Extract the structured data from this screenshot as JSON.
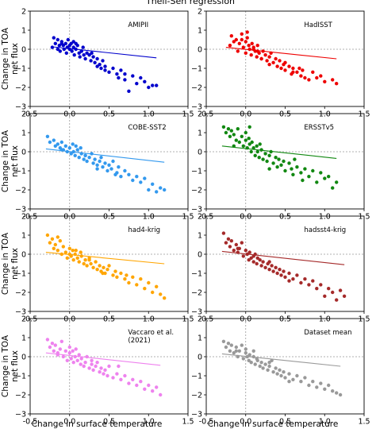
{
  "figure": {
    "title": "Theil-Sen regression",
    "xlabel": "Change in surface temperature",
    "ylabel_line1": "Change in TOA",
    "ylabel_line2": "net flux"
  },
  "chart_data": [
    {
      "type": "scatter",
      "title": "AMIPII",
      "color": "#0000cc",
      "xlim": [
        -0.5,
        1.5
      ],
      "ylim": [
        -3,
        2
      ],
      "xticks": [
        -0.5,
        0.0,
        0.5,
        1.0,
        1.5
      ],
      "yticks": [
        -3,
        -2,
        -1,
        0,
        1,
        2
      ],
      "fit": {
        "x": [
          -0.2,
          1.1
        ],
        "y": [
          0.12,
          -0.45
        ]
      },
      "x": [
        -0.22,
        -0.2,
        -0.18,
        -0.15,
        -0.13,
        -0.12,
        -0.1,
        -0.08,
        -0.07,
        -0.05,
        -0.04,
        -0.03,
        -0.02,
        0.0,
        0.0,
        0.02,
        0.03,
        0.05,
        0.06,
        0.08,
        0.1,
        0.12,
        0.13,
        0.15,
        0.17,
        0.18,
        0.2,
        0.22,
        0.25,
        0.27,
        0.3,
        0.32,
        0.35,
        0.38,
        0.4,
        0.42,
        0.45,
        0.5,
        0.55,
        0.6,
        0.62,
        0.65,
        0.7,
        0.75,
        0.8,
        0.85,
        0.9,
        0.95,
        1.0,
        1.05,
        1.1,
        -0.1,
        0.05,
        0.15,
        0.28,
        0.45,
        0.7,
        -0.15,
        0.08,
        0.35
      ],
      "y": [
        0.1,
        0.6,
        0.3,
        0.5,
        0.2,
        -0.1,
        0.4,
        0.2,
        0.0,
        0.3,
        -0.2,
        0.1,
        0.5,
        0.0,
        0.2,
        0.3,
        -0.1,
        0.1,
        -0.3,
        0.0,
        0.2,
        -0.2,
        -0.4,
        -0.1,
        0.1,
        -0.3,
        -0.5,
        -0.2,
        -0.3,
        -0.6,
        -0.4,
        -0.7,
        -0.5,
        -0.8,
        -1.0,
        -0.6,
        -1.1,
        -1.2,
        -1.0,
        -1.3,
        -1.5,
        -1.1,
        -1.6,
        -2.2,
        -1.4,
        -1.8,
        -1.5,
        -1.7,
        -2.0,
        -1.9,
        -1.9,
        0.3,
        0.4,
        -0.1,
        -0.2,
        -0.9,
        -1.3,
        0.0,
        0.3,
        -0.9
      ]
    },
    {
      "type": "scatter",
      "title": "HadISST",
      "color": "#ee0000",
      "xlim": [
        -0.5,
        1.5
      ],
      "ylim": [
        -3,
        2
      ],
      "xticks": [
        -0.5,
        0.0,
        0.5,
        1.0,
        1.5
      ],
      "yticks": [
        -3,
        -2,
        -1,
        0,
        1,
        2
      ],
      "fit": {
        "x": [
          -0.25,
          1.15
        ],
        "y": [
          0.1,
          -0.5
        ]
      },
      "x": [
        -0.2,
        -0.18,
        -0.15,
        -0.12,
        -0.1,
        -0.08,
        -0.05,
        -0.03,
        0.0,
        0.0,
        0.02,
        0.04,
        0.05,
        0.07,
        0.08,
        0.1,
        0.12,
        0.14,
        0.15,
        0.17,
        0.2,
        0.22,
        0.25,
        0.27,
        0.3,
        0.32,
        0.35,
        0.38,
        0.4,
        0.43,
        0.45,
        0.48,
        0.5,
        0.55,
        0.58,
        0.6,
        0.65,
        0.7,
        0.72,
        0.75,
        0.8,
        0.85,
        0.9,
        0.95,
        1.0,
        1.1,
        1.15,
        -0.05,
        0.1,
        0.2,
        0.3,
        0.5,
        0.6,
        0.68,
        0.02,
        0.15
      ],
      "y": [
        0.2,
        0.7,
        0.4,
        0.5,
        -0.1,
        0.3,
        0.8,
        0.1,
        0.4,
        -0.2,
        0.6,
        0.2,
        0.0,
        -0.3,
        0.3,
        0.1,
        -0.1,
        -0.4,
        0.2,
        -0.2,
        -0.5,
        -0.1,
        -0.3,
        -0.6,
        -0.4,
        -0.2,
        -0.7,
        -0.5,
        -0.9,
        -0.6,
        -1.0,
        -0.8,
        -1.1,
        -0.9,
        -1.3,
        -1.0,
        -1.2,
        -1.4,
        -1.1,
        -1.5,
        -1.6,
        -1.2,
        -1.5,
        -1.4,
        -1.7,
        -1.6,
        -1.8,
        0.5,
        0.0,
        -0.5,
        -0.8,
        -0.7,
        -1.2,
        -1.0,
        0.9,
        -0.1
      ]
    },
    {
      "type": "scatter",
      "title": "COBE-SST2",
      "color": "#3399ee",
      "xlim": [
        -0.5,
        1.5
      ],
      "ylim": [
        -3,
        2
      ],
      "xticks": [
        -0.5,
        0.0,
        0.5,
        1.0,
        1.5
      ],
      "yticks": [
        -3,
        -2,
        -1,
        0,
        1,
        2
      ],
      "fit": {
        "x": [
          -0.3,
          1.2
        ],
        "y": [
          0.15,
          -0.55
        ]
      },
      "x": [
        -0.28,
        -0.25,
        -0.2,
        -0.18,
        -0.15,
        -0.12,
        -0.1,
        -0.08,
        -0.05,
        -0.03,
        0.0,
        0.02,
        0.04,
        0.05,
        0.07,
        0.1,
        0.12,
        0.14,
        0.15,
        0.18,
        0.2,
        0.22,
        0.25,
        0.28,
        0.3,
        0.32,
        0.35,
        0.38,
        0.4,
        0.42,
        0.45,
        0.48,
        0.5,
        0.53,
        0.55,
        0.6,
        0.62,
        0.65,
        0.7,
        0.75,
        0.8,
        0.85,
        0.9,
        0.95,
        1.0,
        1.05,
        1.1,
        1.15,
        1.2,
        -0.1,
        0.08,
        0.2,
        0.35,
        0.58
      ],
      "y": [
        0.8,
        0.5,
        0.6,
        0.3,
        0.4,
        0.2,
        0.5,
        0.1,
        0.3,
        0.0,
        0.2,
        -0.1,
        0.4,
        0.0,
        -0.2,
        0.1,
        -0.3,
        0.2,
        -0.1,
        -0.4,
        -0.2,
        -0.5,
        -0.3,
        -0.1,
        -0.6,
        -0.4,
        -0.7,
        -0.5,
        -0.3,
        -0.8,
        -0.6,
        -1.0,
        -0.7,
        -0.9,
        -0.5,
        -1.1,
        -0.8,
        -1.3,
        -1.0,
        -1.2,
        -1.5,
        -1.3,
        -1.6,
        -1.4,
        -2.0,
        -1.7,
        -2.1,
        -1.9,
        -2.0,
        0.1,
        0.3,
        -0.2,
        -0.9,
        -1.2
      ]
    },
    {
      "type": "scatter",
      "title": "ERSSTv5",
      "color": "#118811",
      "xlim": [
        -0.5,
        1.5
      ],
      "ylim": [
        -3,
        2
      ],
      "xticks": [
        -0.5,
        0.0,
        0.5,
        1.0,
        1.5
      ],
      "yticks": [
        -3,
        -2,
        -1,
        0,
        1,
        2
      ],
      "fit": {
        "x": [
          -0.3,
          1.15
        ],
        "y": [
          0.3,
          -0.35
        ]
      },
      "x": [
        -0.28,
        -0.25,
        -0.22,
        -0.2,
        -0.18,
        -0.15,
        -0.12,
        -0.1,
        -0.08,
        -0.05,
        -0.03,
        0.0,
        0.0,
        0.02,
        0.04,
        0.05,
        0.07,
        0.08,
        0.1,
        0.12,
        0.14,
        0.15,
        0.17,
        0.2,
        0.22,
        0.25,
        0.27,
        0.3,
        0.32,
        0.35,
        0.38,
        0.4,
        0.42,
        0.45,
        0.48,
        0.5,
        0.55,
        0.58,
        0.6,
        0.65,
        0.7,
        0.72,
        0.75,
        0.8,
        0.85,
        0.9,
        0.95,
        1.0,
        1.05,
        1.1,
        1.15,
        -0.15,
        0.05,
        0.18,
        0.3,
        0.62
      ],
      "y": [
        1.3,
        1.0,
        1.2,
        0.8,
        1.1,
        0.9,
        0.6,
        1.2,
        0.5,
        0.8,
        0.3,
        0.6,
        1.0,
        0.2,
        0.7,
        0.4,
        0.0,
        0.5,
        0.2,
        -0.2,
        0.3,
        0.0,
        -0.3,
        0.1,
        -0.4,
        -0.1,
        -0.5,
        -0.2,
        0.0,
        -0.6,
        -0.3,
        -0.8,
        -0.4,
        -0.7,
        -0.5,
        -1.0,
        -0.6,
        -0.9,
        -1.2,
        -0.8,
        -1.1,
        -1.5,
        -0.9,
        -1.3,
        -1.0,
        -1.6,
        -1.1,
        -1.4,
        -1.3,
        -1.9,
        -1.6,
        0.3,
        1.3,
        0.4,
        -0.9,
        -0.4
      ]
    },
    {
      "type": "scatter",
      "title": "had4-krig",
      "color": "#ffa500",
      "xlim": [
        -0.5,
        1.5
      ],
      "ylim": [
        -3,
        2
      ],
      "xticks": [
        -0.5,
        0.0,
        0.5,
        1.0,
        1.5
      ],
      "yticks": [
        -3,
        -2,
        -1,
        0,
        1,
        2
      ],
      "fit": {
        "x": [
          -0.3,
          1.2
        ],
        "y": [
          0.1,
          -0.5
        ]
      },
      "x": [
        -0.28,
        -0.25,
        -0.22,
        -0.2,
        -0.18,
        -0.15,
        -0.12,
        -0.1,
        -0.08,
        -0.05,
        -0.03,
        0.0,
        0.0,
        0.02,
        0.04,
        0.05,
        0.07,
        0.1,
        0.12,
        0.14,
        0.15,
        0.18,
        0.2,
        0.22,
        0.25,
        0.27,
        0.3,
        0.33,
        0.35,
        0.38,
        0.4,
        0.43,
        0.45,
        0.48,
        0.5,
        0.55,
        0.58,
        0.6,
        0.65,
        0.7,
        0.72,
        0.75,
        0.8,
        0.85,
        0.9,
        0.95,
        1.0,
        1.05,
        1.1,
        1.15,
        1.2,
        -0.15,
        0.08,
        0.25,
        0.42
      ],
      "y": [
        1.0,
        0.6,
        0.8,
        0.3,
        0.5,
        0.2,
        0.7,
        0.0,
        0.4,
        0.1,
        -0.2,
        0.3,
        0.0,
        -0.1,
        0.2,
        -0.3,
        0.0,
        -0.2,
        -0.4,
        0.1,
        -0.1,
        -0.5,
        -0.3,
        -0.6,
        -0.2,
        -0.5,
        -0.7,
        -0.4,
        -0.8,
        -0.6,
        -0.9,
        -0.7,
        -1.0,
        -0.8,
        -0.6,
        -1.1,
        -0.9,
        -1.2,
        -1.0,
        -1.3,
        -1.1,
        -1.5,
        -1.2,
        -1.6,
        -1.3,
        -1.8,
        -1.5,
        -2.0,
        -1.7,
        -2.1,
        -2.3,
        0.9,
        0.2,
        -0.3,
        -1.0
      ]
    },
    {
      "type": "scatter",
      "title": "hadsst4-krig",
      "color": "#a52a2a",
      "xlim": [
        -0.5,
        1.5
      ],
      "ylim": [
        -3,
        2
      ],
      "xticks": [
        -0.5,
        0.0,
        0.5,
        1.0,
        1.5
      ],
      "yticks": [
        -3,
        -2,
        -1,
        0,
        1,
        2
      ],
      "fit": {
        "x": [
          -0.3,
          1.25
        ],
        "y": [
          0.15,
          -0.55
        ]
      },
      "x": [
        -0.28,
        -0.25,
        -0.22,
        -0.2,
        -0.18,
        -0.15,
        -0.12,
        -0.1,
        -0.08,
        -0.05,
        -0.03,
        0.0,
        0.02,
        0.04,
        0.05,
        0.07,
        0.1,
        0.12,
        0.14,
        0.15,
        0.18,
        0.2,
        0.22,
        0.25,
        0.28,
        0.3,
        0.33,
        0.35,
        0.38,
        0.4,
        0.43,
        0.45,
        0.48,
        0.5,
        0.55,
        0.6,
        0.65,
        0.7,
        0.75,
        0.8,
        0.85,
        0.9,
        0.95,
        1.0,
        1.05,
        1.1,
        1.15,
        1.2,
        1.25,
        -0.1,
        0.1,
        0.3,
        0.55
      ],
      "y": [
        1.1,
        0.6,
        0.8,
        0.4,
        0.7,
        0.2,
        0.5,
        0.1,
        0.3,
        0.6,
        -0.1,
        0.2,
        0.0,
        -0.3,
        0.1,
        -0.2,
        -0.4,
        0.0,
        -0.5,
        -0.2,
        -0.3,
        -0.6,
        -0.4,
        -0.7,
        -0.5,
        -0.8,
        -0.6,
        -0.9,
        -0.7,
        -1.0,
        -0.8,
        -1.1,
        -0.9,
        -1.2,
        -1.0,
        -1.3,
        -1.1,
        -1.5,
        -1.3,
        -1.6,
        -1.4,
        -1.8,
        -1.6,
        -2.2,
        -1.8,
        -2.0,
        -2.4,
        -1.9,
        -2.2,
        0.3,
        -0.1,
        -0.4,
        -1.4
      ]
    },
    {
      "type": "scatter",
      "title": "Vaccaro et al.\n(2021)",
      "color": "#ee82ee",
      "xlim": [
        -0.5,
        1.5
      ],
      "ylim": [
        -3,
        2
      ],
      "xticks": [
        -0.5,
        0.0,
        0.5,
        1.0,
        1.5
      ],
      "yticks": [
        -3,
        -2,
        -1,
        0,
        1,
        2
      ],
      "fit": {
        "x": [
          -0.3,
          1.15
        ],
        "y": [
          0.2,
          -0.45
        ]
      },
      "x": [
        -0.28,
        -0.25,
        -0.22,
        -0.2,
        -0.18,
        -0.15,
        -0.12,
        -0.1,
        -0.08,
        -0.05,
        -0.03,
        0.0,
        0.0,
        0.02,
        0.04,
        0.05,
        0.07,
        0.1,
        0.12,
        0.14,
        0.15,
        0.18,
        0.2,
        0.22,
        0.25,
        0.28,
        0.3,
        0.33,
        0.35,
        0.38,
        0.4,
        0.43,
        0.45,
        0.48,
        0.5,
        0.55,
        0.6,
        0.65,
        0.7,
        0.75,
        0.8,
        0.85,
        0.9,
        0.95,
        1.0,
        1.05,
        1.1,
        1.15,
        -0.15,
        0.08,
        0.28,
        0.62
      ],
      "y": [
        0.9,
        0.5,
        0.7,
        0.3,
        0.6,
        0.1,
        0.4,
        0.8,
        0.0,
        0.3,
        -0.2,
        0.2,
        0.5,
        -0.1,
        0.3,
        -0.3,
        0.0,
        -0.2,
        0.1,
        -0.4,
        -0.1,
        -0.5,
        -0.3,
        0.0,
        -0.6,
        -0.4,
        -0.7,
        -0.5,
        -0.3,
        -0.8,
        -0.6,
        -0.9,
        -0.7,
        -1.0,
        -0.5,
        -1.1,
        -0.9,
        -1.2,
        -1.0,
        -1.4,
        -1.2,
        -1.5,
        -1.3,
        -1.7,
        -1.5,
        -1.8,
        -1.6,
        -2.0,
        0.2,
        0.4,
        -0.2,
        -0.5
      ]
    },
    {
      "type": "scatter",
      "title": "Dataset mean",
      "color": "#999999",
      "xlim": [
        -0.5,
        1.5
      ],
      "ylim": [
        -3,
        2
      ],
      "xticks": [
        -0.5,
        0.0,
        0.5,
        1.0,
        1.5
      ],
      "yticks": [
        -3,
        -2,
        -1,
        0,
        1,
        2
      ],
      "fit": {
        "x": [
          -0.3,
          1.2
        ],
        "y": [
          0.15,
          -0.5
        ]
      },
      "x": [
        -0.28,
        -0.25,
        -0.22,
        -0.2,
        -0.18,
        -0.15,
        -0.12,
        -0.1,
        -0.08,
        -0.05,
        -0.03,
        0.0,
        0.0,
        0.02,
        0.04,
        0.05,
        0.07,
        0.1,
        0.12,
        0.14,
        0.15,
        0.18,
        0.2,
        0.22,
        0.25,
        0.28,
        0.3,
        0.33,
        0.35,
        0.38,
        0.4,
        0.43,
        0.45,
        0.48,
        0.5,
        0.55,
        0.6,
        0.65,
        0.7,
        0.75,
        0.8,
        0.85,
        0.9,
        0.95,
        1.0,
        1.05,
        1.1,
        1.15,
        1.2,
        -0.12,
        0.1,
        0.3,
        0.55
      ],
      "y": [
        0.8,
        0.5,
        0.7,
        0.3,
        0.6,
        0.2,
        0.5,
        0.0,
        0.3,
        0.6,
        -0.1,
        0.2,
        0.4,
        0.0,
        -0.2,
        0.1,
        -0.3,
        0.0,
        -0.4,
        -0.1,
        -0.2,
        -0.5,
        -0.3,
        -0.6,
        -0.4,
        -0.7,
        -0.5,
        -0.2,
        -0.8,
        -0.6,
        -0.9,
        -0.7,
        -1.0,
        -0.8,
        -1.1,
        -0.9,
        -1.2,
        -1.0,
        -1.3,
        -1.1,
        -1.5,
        -1.3,
        -1.6,
        -1.4,
        -1.7,
        -1.5,
        -1.8,
        -1.9,
        -2.0,
        0.3,
        0.3,
        -0.3,
        -1.3
      ]
    }
  ]
}
